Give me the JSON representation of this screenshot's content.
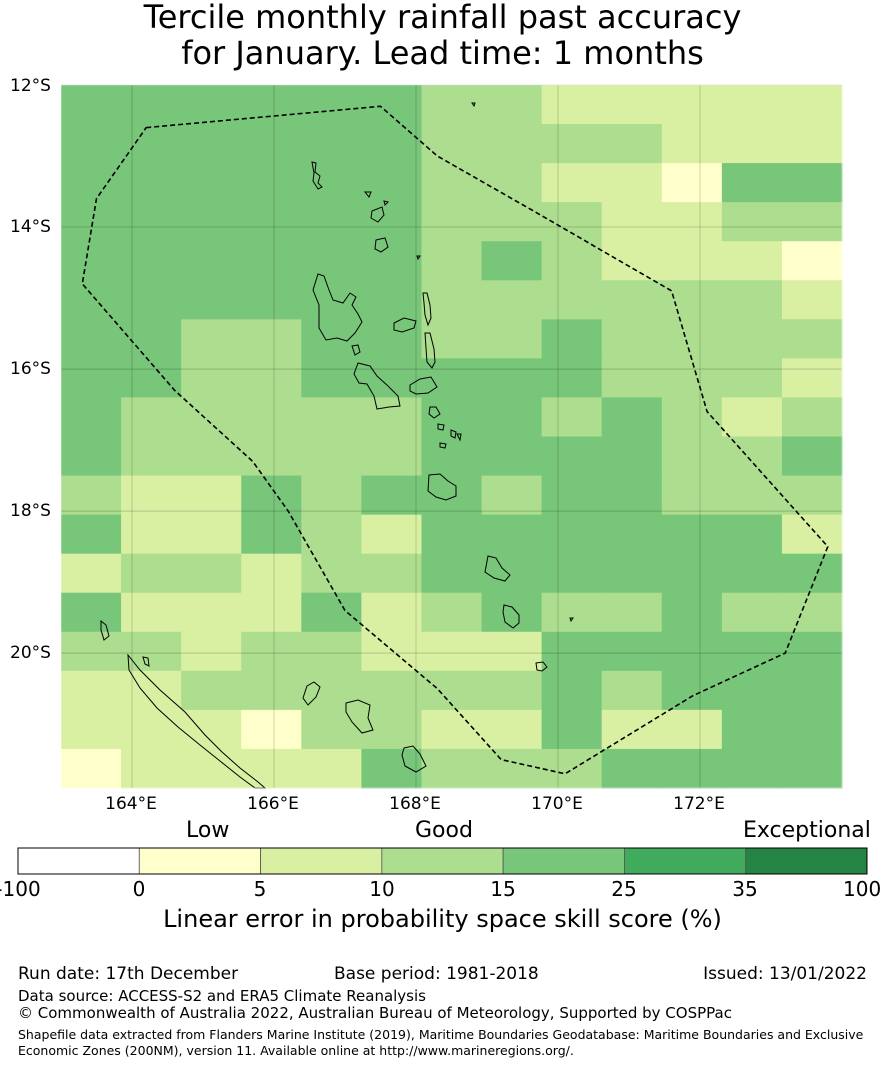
{
  "title": {
    "line1": "Tercile monthly rainfall past accuracy",
    "line2": "for January. Lead time: 1 months"
  },
  "map": {
    "lat_labels": [
      "12°S",
      "14°S",
      "16°S",
      "18°S",
      "20°S"
    ],
    "lon_labels": [
      "164°E",
      "166°E",
      "168°E",
      "170°E",
      "172°E"
    ],
    "lon_range": [
      163,
      174
    ],
    "lat_range": [
      -21.9,
      -12
    ],
    "skill_grid_categories": [
      "3333332211111",
      "3333332222111",
      "3333332211033",
      "3333332221122",
      "3333332321110",
      "3333332222221",
      "3322332232222",
      "3322333332221",
      "3222223323212",
      "3222223333223",
      "2113233233222",
      "3113213333331",
      "1221223333333",
      "3111312322322",
      "2212211133333",
      "1122222232333",
      "1110221131133",
      "0111132223333"
    ],
    "eez_outline": [
      [
        164.2,
        -12.6
      ],
      [
        167.5,
        -12.3
      ],
      [
        168.3,
        -13.0
      ],
      [
        169.7,
        -13.8
      ],
      [
        171.6,
        -14.9
      ],
      [
        172.1,
        -16.6
      ],
      [
        173.8,
        -18.5
      ],
      [
        173.2,
        -20.0
      ],
      [
        171.9,
        -20.6
      ],
      [
        170.1,
        -21.7
      ],
      [
        169.2,
        -21.5
      ],
      [
        168.3,
        -20.5
      ],
      [
        167.0,
        -19.4
      ],
      [
        166.2,
        -18.0
      ],
      [
        165.7,
        -17.3
      ],
      [
        164.6,
        -16.3
      ],
      [
        163.3,
        -14.8
      ],
      [
        163.5,
        -13.6
      ]
    ]
  },
  "legend": {
    "category_labels": {
      "low": "Low",
      "good": "Good",
      "exceptional": "Exceptional"
    },
    "bins": [
      {
        "color": "#ffffff"
      },
      {
        "color": "#ffffcc"
      },
      {
        "color": "#d9f0a3"
      },
      {
        "color": "#addd8e"
      },
      {
        "color": "#78c679"
      },
      {
        "color": "#41ab5d"
      },
      {
        "color": "#238443"
      }
    ],
    "ticks": [
      "-100",
      "0",
      "5",
      "10",
      "15",
      "25",
      "35",
      "100"
    ],
    "axis_title": "Linear error in probability space skill score (%)"
  },
  "footer": {
    "run_date": "Run date: 17th December",
    "base_period": "Base period: 1981-2018",
    "issued": "Issued: 13/01/2022",
    "data_source": "Data source: ACCESS-S2 and ERA5 Climate Reanalysis",
    "copyright": "© Commonwealth of Australia 2022, Australian Bureau of Meteorology, Supported by COSPPac",
    "shapefile_line1": "Shapefile data extracted from Flanders Marine Institute (2019), Maritime Boundaries Geodatabase: Maritime Boundaries and Exclusive",
    "shapefile_line2": "Economic Zones (200NM), version 11. Available online at http://www.marineregions.org/."
  }
}
